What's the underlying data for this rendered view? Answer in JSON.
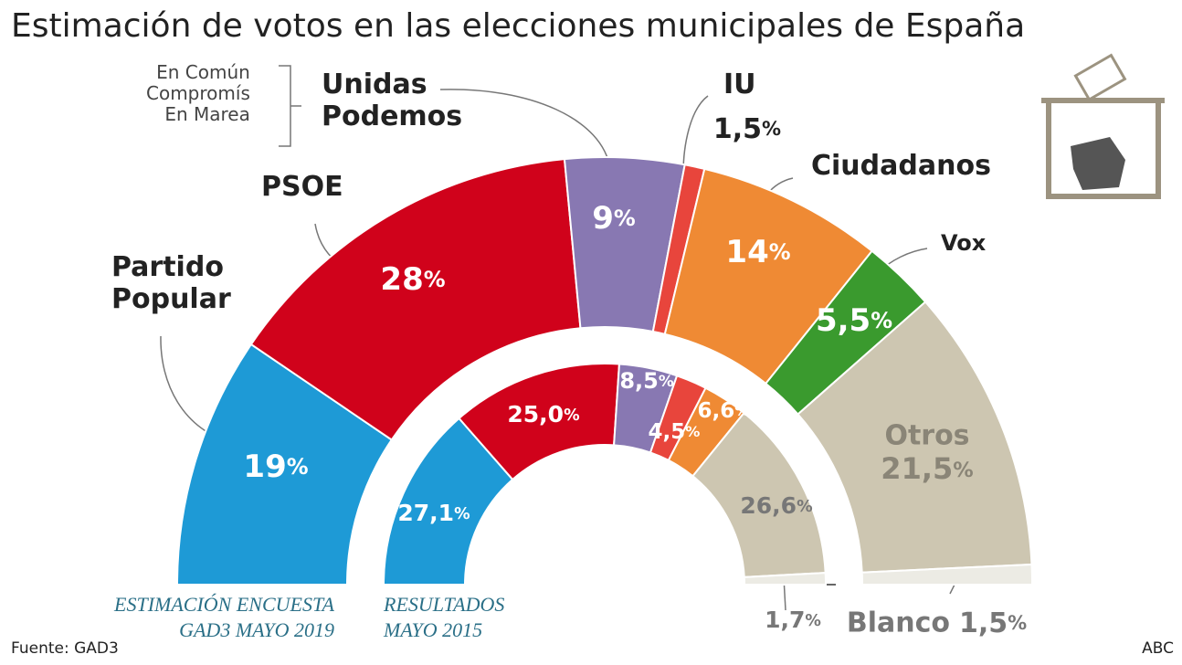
{
  "chart_data": {
    "type": "semidonut",
    "title": "Estimación de votos en las elecciones municipales de España",
    "categories": [
      "Partido\nPopular",
      "PSOE",
      "Unidas\nPodemos",
      "IU",
      "Ciudadanos",
      "Vox",
      "Otros",
      "Blanco"
    ],
    "colors": [
      "#1e9ad6",
      "#d0021b",
      "#8878b2",
      "#e8453c",
      "#ef8a34",
      "#3a9a2e",
      "#cdc6b1",
      "#ecebe4"
    ],
    "series": [
      {
        "name": "ESTIMACIÓN ENCUESTA\nGAD3 MAYO 2019",
        "values": [
          19,
          28,
          9,
          1.5,
          14,
          5.5,
          21.5,
          1.5
        ],
        "value_labels": [
          "19%",
          "28%",
          "9%",
          "1,5%",
          "14%",
          "5,5%",
          "21,5%",
          "1,5%"
        ]
      },
      {
        "name": "RESULTADOS\nMAYO 2015",
        "values": [
          27.1,
          25.0,
          8.5,
          4.5,
          6.6,
          null,
          26.6,
          1.7
        ],
        "value_labels": [
          "27,1%",
          "25,0%",
          "8,5%",
          "4,5%",
          "6,6%",
          null,
          "26,6%",
          "1,7%"
        ]
      }
    ],
    "annotation": "En Común\nCompromís\nEn Marea",
    "source": "Fuente: GAD3",
    "credit": "ABC"
  }
}
